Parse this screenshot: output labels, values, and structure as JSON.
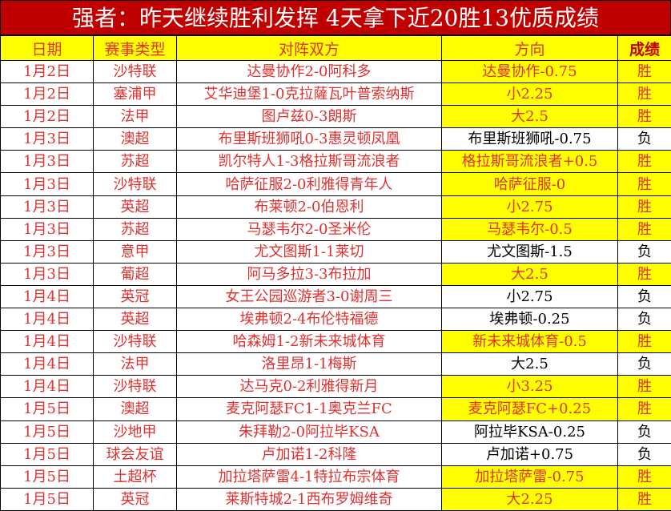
{
  "title": "强者：昨天继续胜利发挥 4天拿下近20胜13优质成绩",
  "headers": [
    "日期",
    "赛事类型",
    "对阵双方",
    "方向",
    "成绩"
  ],
  "colors": {
    "title_bg": "#c00000",
    "highlight": "#ffff00",
    "text_red": "#e03030",
    "loss_text": "#000000"
  },
  "rows": [
    {
      "date": "1月2日",
      "league": "沙特联",
      "match": "达曼协作2-0阿科多",
      "pick": "达曼协作-0.75",
      "result": "胜"
    },
    {
      "date": "1月2日",
      "league": "塞浦甲",
      "match": "艾华迪堡1-0克拉薩瓦叶普索纳斯",
      "pick": "小2.25",
      "result": "胜"
    },
    {
      "date": "1月2日",
      "league": "法甲",
      "match": "图卢兹0-3朗斯",
      "pick": "大2.5",
      "result": "胜"
    },
    {
      "date": "1月3日",
      "league": "澳超",
      "match": "布里斯班狮吼0-3惠灵顿凤凰",
      "pick": "布里斯班狮吼-0.75",
      "result": "负"
    },
    {
      "date": "1月3日",
      "league": "苏超",
      "match": "凯尔特人1-3格拉斯哥流浪者",
      "pick": "格拉斯哥流浪者+0.5",
      "result": "胜"
    },
    {
      "date": "1月3日",
      "league": "沙特联",
      "match": "哈萨征服2-0利雅得青年人",
      "pick": "哈萨征服-0",
      "result": "胜"
    },
    {
      "date": "1月3日",
      "league": "英超",
      "match": "布莱顿2-0伯恩利",
      "pick": "小2.75",
      "result": "胜"
    },
    {
      "date": "1月3日",
      "league": "苏超",
      "match": "马瑟韦尔2-0圣米伦",
      "pick": "马瑟韦尔-0.5",
      "result": "胜"
    },
    {
      "date": "1月3日",
      "league": "意甲",
      "match": "尤文图斯1-1莱切",
      "pick": "尤文图斯-1.5",
      "result": "负"
    },
    {
      "date": "1月3日",
      "league": "葡超",
      "match": "阿马多拉3-3布拉加",
      "pick": "大2.5",
      "result": "胜"
    },
    {
      "date": "1月4日",
      "league": "英冠",
      "match": "女王公园巡游者3-0谢周三",
      "pick": "小2.75",
      "result": "负"
    },
    {
      "date": "1月4日",
      "league": "英超",
      "match": "埃弗顿2-4布伦特福德",
      "pick": "埃弗顿-0.25",
      "result": "负"
    },
    {
      "date": "1月4日",
      "league": "沙特联",
      "match": "哈森姆1-2新未来城体育",
      "pick": "新未来城体育-0.5",
      "result": "胜"
    },
    {
      "date": "1月4日",
      "league": "法甲",
      "match": "洛里昂1-1梅斯",
      "pick": "大2.5",
      "result": "负"
    },
    {
      "date": "1月4日",
      "league": "沙特联",
      "match": "达马克0-2利雅得新月",
      "pick": "小3.25",
      "result": "胜"
    },
    {
      "date": "1月5日",
      "league": "澳超",
      "match": "麦克阿瑟FC1-1奥克兰FC",
      "pick": "麦克阿瑟FC+0.25",
      "result": "胜"
    },
    {
      "date": "1月5日",
      "league": "沙地甲",
      "match": "朱拜勒2-0阿拉毕KSA",
      "pick": "阿拉毕KSA-0.25",
      "result": "负"
    },
    {
      "date": "1月5日",
      "league": "球会友谊",
      "match": "卢加诺1-2科隆",
      "pick": "卢加诺+0.75",
      "result": "负"
    },
    {
      "date": "1月5日",
      "league": "土超杯",
      "match": "加拉塔萨雷4-1特拉布宗体育",
      "pick": "加拉塔萨雷-0.75",
      "result": "胜"
    },
    {
      "date": "1月5日",
      "league": "英冠",
      "match": "莱斯特城2-1西布罗姆维奇",
      "pick": "大2.25",
      "result": "胜"
    }
  ]
}
